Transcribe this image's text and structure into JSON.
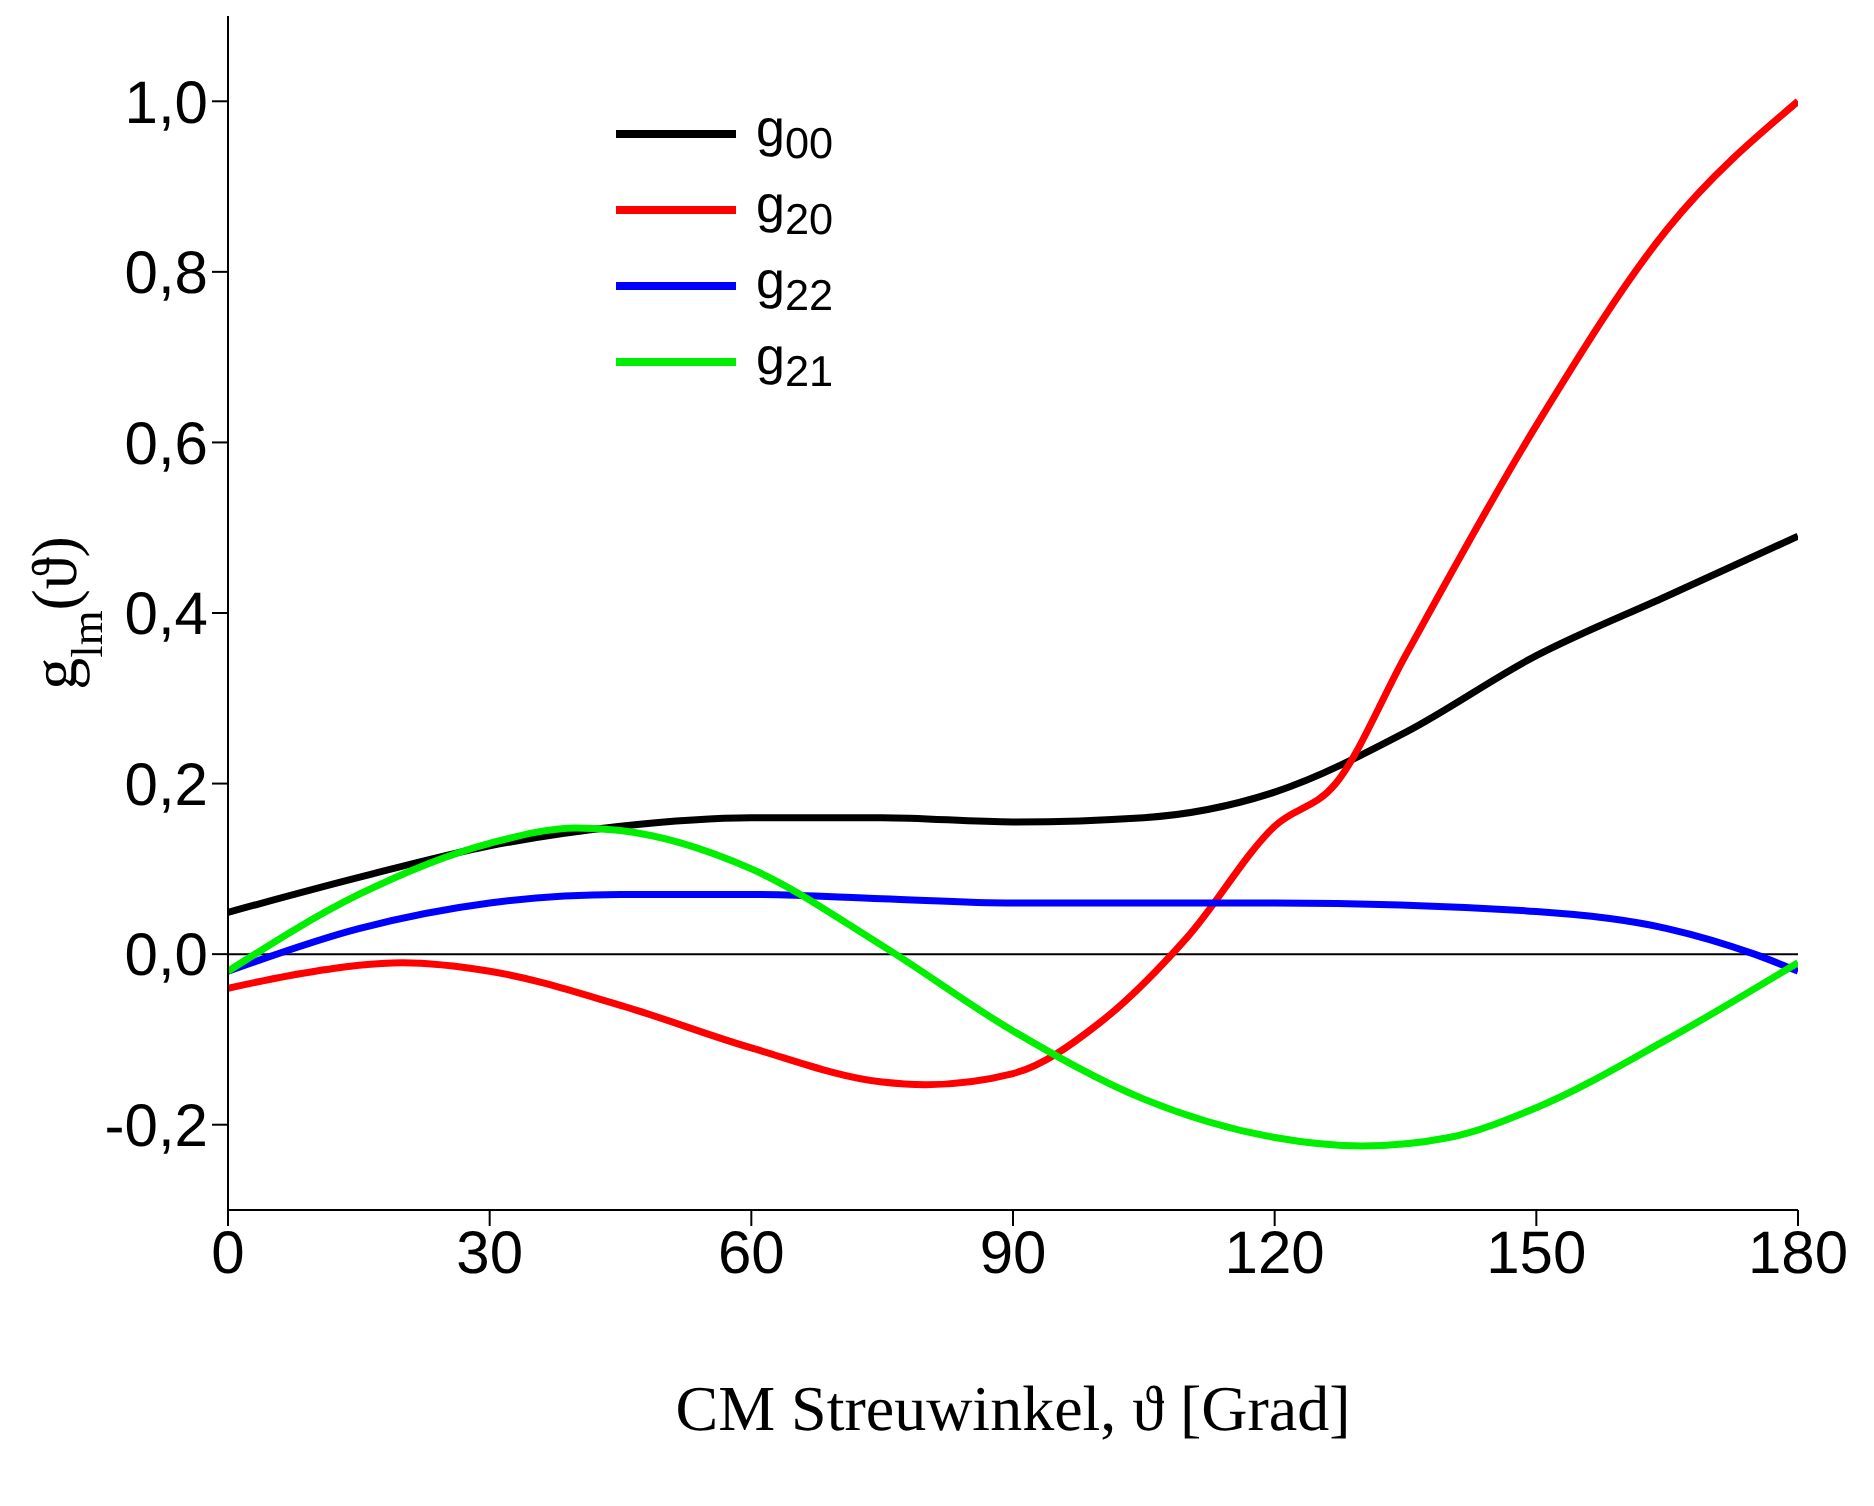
{
  "chart_data": {
    "type": "line",
    "xlabel": "CM Streuwinkel, ϑ [Grad]",
    "ylabel": "g$_{lm}$(ϑ)",
    "xlim": [
      0,
      180
    ],
    "xticks": [
      0,
      30,
      60,
      90,
      120,
      150,
      180
    ],
    "ylim": [
      -0.3,
      1.1
    ],
    "yticks": [
      {
        "value": -0.2,
        "label": "-0,2"
      },
      {
        "value": 0,
        "label": "0,0"
      },
      {
        "value": 0.2,
        "label": "0,2"
      },
      {
        "value": 0.4,
        "label": "0,4"
      },
      {
        "value": 0.6,
        "label": "0,6"
      },
      {
        "value": 0.8,
        "label": "0,8"
      },
      {
        "value": 1.0,
        "label": "1,0"
      }
    ],
    "grid": false,
    "legend": "top left",
    "marker": "none",
    "line_style": "solid",
    "ref_lines": [
      {
        "axis": "y",
        "value": 0,
        "color": "#000000"
      }
    ],
    "series": [
      {
        "name": "g$_{00}$",
        "color": "#000000",
        "x": [
          0,
          15,
          30,
          45,
          60,
          75,
          90,
          105,
          120,
          135,
          150,
          165,
          180
        ],
        "values": [
          0.049,
          0.09,
          0.127,
          0.15,
          0.16,
          0.16,
          0.155,
          0.16,
          0.19,
          0.26,
          0.35,
          0.42,
          0.49
        ]
      },
      {
        "name": "g$_{20}$",
        "color": "#ff0000",
        "x": [
          0,
          10,
          20,
          30,
          45,
          60,
          75,
          80,
          90,
          100,
          110,
          120,
          127,
          135,
          150,
          165,
          180
        ],
        "values": [
          -0.04,
          -0.02,
          -0.01,
          -0.02,
          -0.06,
          -0.11,
          -0.15,
          -0.153,
          -0.14,
          -0.08,
          0.02,
          0.15,
          0.2,
          0.35,
          0.62,
          0.85,
          1.0
        ]
      },
      {
        "name": "g$_{22}$",
        "color": "#0000ff",
        "x": [
          0,
          15,
          30,
          45,
          60,
          75,
          90,
          120,
          150,
          165,
          175,
          180
        ],
        "values": [
          -0.02,
          0.03,
          0.06,
          0.07,
          0.07,
          0.065,
          0.06,
          0.06,
          0.05,
          0.03,
          0.0,
          -0.02
        ]
      },
      {
        "name": "g$_{21}$",
        "color": "#00ee00",
        "x": [
          0,
          15,
          30,
          40,
          45,
          60,
          75,
          90,
          105,
          120,
          130,
          140,
          150,
          165,
          180
        ],
        "values": [
          -0.02,
          0.07,
          0.13,
          0.148,
          0.145,
          0.1,
          0.01,
          -0.09,
          -0.17,
          -0.215,
          -0.225,
          -0.215,
          -0.18,
          -0.1,
          -0.01
        ]
      }
    ]
  }
}
